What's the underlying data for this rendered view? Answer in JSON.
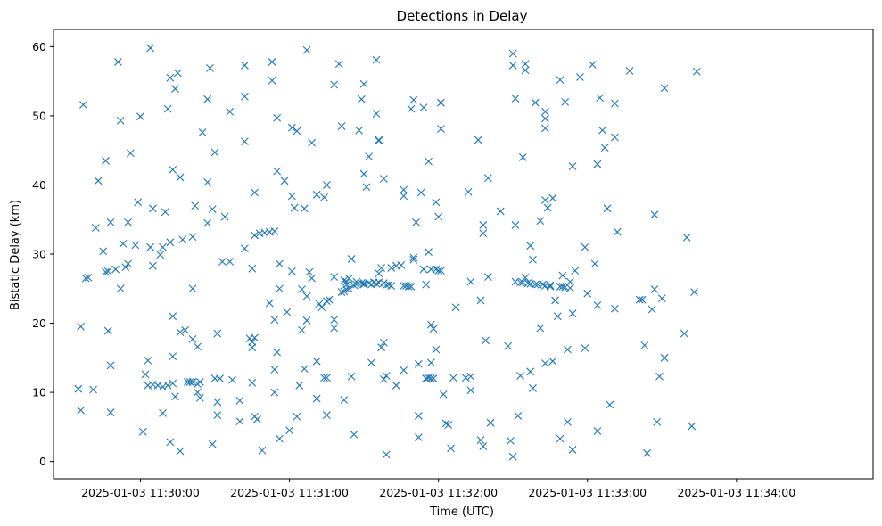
{
  "chart_data": {
    "type": "scatter",
    "title": "Detections in Delay",
    "xlabel": "Time (UTC)",
    "ylabel": "Bistatic Delay (km)",
    "xlim": [
      "2025-01-03 11:29:25",
      "2025-01-03 11:34:55"
    ],
    "ylim": [
      -2.5,
      62.5
    ],
    "grid": false,
    "marker": "x",
    "color": "#1f77b4",
    "x_ticks": [
      {
        "t": "2025-01-03 11:30:00",
        "label": "2025-01-03 11:30:00"
      },
      {
        "t": "2025-01-03 11:31:00",
        "label": "2025-01-03 11:31:00"
      },
      {
        "t": "2025-01-03 11:32:00",
        "label": "2025-01-03 11:32:00"
      },
      {
        "t": "2025-01-03 11:33:00",
        "label": "2025-01-03 11:33:00"
      },
      {
        "t": "2025-01-03 11:34:00",
        "label": "2025-01-03 11:34:00"
      }
    ],
    "y_ticks": [
      0,
      10,
      20,
      30,
      40,
      50,
      60
    ],
    "points": [
      [
        "11:29:35",
        10.5
      ],
      [
        "11:29:36",
        7.4
      ],
      [
        "11:29:36",
        19.5
      ],
      [
        "11:29:37",
        51.6
      ],
      [
        "11:29:38",
        26.5
      ],
      [
        "11:29:39",
        26.6
      ],
      [
        "11:29:41",
        10.4
      ],
      [
        "11:29:42",
        33.8
      ],
      [
        "11:29:43",
        40.6
      ],
      [
        "11:29:45",
        30.4
      ],
      [
        "11:29:46",
        43.5
      ],
      [
        "11:29:46",
        27.4
      ],
      [
        "11:29:47",
        18.9
      ],
      [
        "11:29:47",
        27.5
      ],
      [
        "11:29:48",
        13.9
      ],
      [
        "11:29:48",
        34.6
      ],
      [
        "11:29:48",
        7.1
      ],
      [
        "11:29:50",
        27.8
      ],
      [
        "11:29:51",
        57.8
      ],
      [
        "11:29:52",
        49.3
      ],
      [
        "11:29:52",
        25.0
      ],
      [
        "11:29:53",
        31.5
      ],
      [
        "11:29:54",
        28.1
      ],
      [
        "11:29:55",
        34.6
      ],
      [
        "11:29:55",
        28.6
      ],
      [
        "11:29:56",
        44.6
      ],
      [
        "11:29:58",
        31.3
      ],
      [
        "11:29:59",
        37.5
      ],
      [
        "11:30:00",
        49.9
      ],
      [
        "11:30:01",
        4.3
      ],
      [
        "11:30:02",
        12.6
      ],
      [
        "11:30:03",
        14.6
      ],
      [
        "11:30:03",
        11.0
      ],
      [
        "11:30:04",
        59.8
      ],
      [
        "11:30:04",
        31.0
      ],
      [
        "11:30:05",
        28.3
      ],
      [
        "11:30:05",
        11.1
      ],
      [
        "11:30:05",
        36.6
      ],
      [
        "11:30:07",
        11.0
      ],
      [
        "11:30:08",
        29.9
      ],
      [
        "11:30:09",
        31.0
      ],
      [
        "11:30:09",
        7.0
      ],
      [
        "11:30:09",
        10.8
      ],
      [
        "11:30:10",
        36.1
      ],
      [
        "11:30:11",
        11.0
      ],
      [
        "11:30:11",
        51.0
      ],
      [
        "11:30:12",
        55.5
      ],
      [
        "11:30:12",
        31.7
      ],
      [
        "11:30:12",
        2.8
      ],
      [
        "11:30:13",
        42.2
      ],
      [
        "11:30:13",
        21.0
      ],
      [
        "11:30:13",
        15.2
      ],
      [
        "11:30:13",
        11.3
      ],
      [
        "11:30:14",
        9.4
      ],
      [
        "11:30:14",
        53.9
      ],
      [
        "11:30:15",
        56.2
      ],
      [
        "11:30:16",
        1.5
      ],
      [
        "11:30:16",
        18.7
      ],
      [
        "11:30:16",
        41.1
      ],
      [
        "11:30:17",
        32.1
      ],
      [
        "11:30:18",
        19.0
      ],
      [
        "11:30:19",
        11.5
      ],
      [
        "11:30:20",
        11.5
      ],
      [
        "11:30:21",
        11.5
      ],
      [
        "11:30:21",
        25.0
      ],
      [
        "11:30:21",
        32.5
      ],
      [
        "11:30:21",
        17.7
      ],
      [
        "11:30:22",
        37.0
      ],
      [
        "11:30:23",
        11.2
      ],
      [
        "11:30:23",
        16.6
      ],
      [
        "11:30:23",
        10.0
      ],
      [
        "11:30:24",
        11.5
      ],
      [
        "11:30:24",
        9.2
      ],
      [
        "11:30:25",
        47.6
      ],
      [
        "11:30:27",
        40.4
      ],
      [
        "11:30:27",
        52.4
      ],
      [
        "11:30:27",
        34.5
      ],
      [
        "11:30:28",
        56.9
      ],
      [
        "11:30:29",
        2.5
      ],
      [
        "11:30:29",
        36.5
      ],
      [
        "11:30:30",
        44.7
      ],
      [
        "11:30:30",
        12.0
      ],
      [
        "11:30:31",
        18.5
      ],
      [
        "11:30:31",
        6.7
      ],
      [
        "11:30:31",
        8.6
      ],
      [
        "11:30:32",
        12.0
      ],
      [
        "11:30:33",
        28.9
      ],
      [
        "11:30:34",
        35.4
      ],
      [
        "11:30:36",
        28.9
      ],
      [
        "11:30:36",
        50.6
      ],
      [
        "11:30:37",
        11.8
      ],
      [
        "11:30:40",
        8.8
      ],
      [
        "11:30:40",
        5.8
      ],
      [
        "11:30:42",
        30.8
      ],
      [
        "11:30:42",
        57.3
      ],
      [
        "11:30:42",
        52.8
      ],
      [
        "11:30:42",
        46.3
      ],
      [
        "11:30:44",
        17.8
      ],
      [
        "11:30:45",
        11.4
      ],
      [
        "11:30:45",
        16.5
      ],
      [
        "11:30:45",
        27.9
      ],
      [
        "11:30:45",
        17.3
      ],
      [
        "11:30:46",
        38.9
      ],
      [
        "11:30:46",
        6.5
      ],
      [
        "11:30:46",
        32.7
      ],
      [
        "11:30:46",
        17.9
      ],
      [
        "11:30:47",
        6.1
      ],
      [
        "11:30:48",
        33.0
      ],
      [
        "11:30:49",
        1.6
      ],
      [
        "11:30:50",
        33.1
      ],
      [
        "11:30:52",
        33.2
      ],
      [
        "11:30:52",
        22.9
      ],
      [
        "11:30:53",
        55.1
      ],
      [
        "11:30:53",
        57.8
      ],
      [
        "11:30:54",
        33.3
      ],
      [
        "11:30:54",
        20.5
      ],
      [
        "11:30:54",
        10.0
      ],
      [
        "11:30:54",
        13.3
      ],
      [
        "11:30:55",
        42.0
      ],
      [
        "11:30:55",
        15.8
      ],
      [
        "11:30:55",
        49.7
      ],
      [
        "11:30:56",
        25.0
      ],
      [
        "11:30:56",
        28.6
      ],
      [
        "11:30:56",
        3.3
      ],
      [
        "11:30:58",
        40.6
      ],
      [
        "11:30:59",
        21.6
      ],
      [
        "11:31:00",
        4.5
      ],
      [
        "11:31:01",
        27.5
      ],
      [
        "11:31:01",
        38.4
      ],
      [
        "11:31:01",
        48.3
      ],
      [
        "11:31:02",
        36.7
      ],
      [
        "11:31:03",
        6.5
      ],
      [
        "11:31:03",
        47.8
      ],
      [
        "11:31:04",
        11.0
      ],
      [
        "11:31:05",
        24.9
      ],
      [
        "11:31:05",
        19.0
      ],
      [
        "11:31:06",
        36.6
      ],
      [
        "11:31:06",
        13.4
      ],
      [
        "11:31:07",
        59.5
      ],
      [
        "11:31:07",
        20.4
      ],
      [
        "11:31:07",
        23.9
      ],
      [
        "11:31:08",
        27.4
      ],
      [
        "11:31:09",
        26.5
      ],
      [
        "11:31:09",
        46.1
      ],
      [
        "11:31:11",
        38.6
      ],
      [
        "11:31:11",
        14.5
      ],
      [
        "11:31:11",
        9.1
      ],
      [
        "11:31:12",
        22.8
      ],
      [
        "11:31:13",
        22.3
      ],
      [
        "11:31:14",
        38.2
      ],
      [
        "11:31:14",
        12.1
      ],
      [
        "11:31:15",
        6.7
      ],
      [
        "11:31:15",
        40.0
      ],
      [
        "11:31:15",
        23.2
      ],
      [
        "11:31:15",
        12.1
      ],
      [
        "11:31:16",
        23.4
      ],
      [
        "11:31:18",
        26.7
      ],
      [
        "11:31:18",
        19.3
      ],
      [
        "11:31:18",
        20.5
      ],
      [
        "11:31:18",
        54.5
      ],
      [
        "11:31:20",
        57.5
      ],
      [
        "11:31:21",
        48.5
      ],
      [
        "11:31:21",
        24.5
      ],
      [
        "11:31:22",
        24.6
      ],
      [
        "11:31:22",
        26.2
      ],
      [
        "11:31:22",
        8.9
      ],
      [
        "11:31:23",
        25.6
      ],
      [
        "11:31:23",
        26.0
      ],
      [
        "11:31:23",
        24.9
      ],
      [
        "11:31:24",
        25.0
      ],
      [
        "11:31:24",
        26.5
      ],
      [
        "11:31:25",
        29.3
      ],
      [
        "11:31:25",
        12.3
      ],
      [
        "11:31:26",
        25.5
      ],
      [
        "11:31:26",
        3.9
      ],
      [
        "11:31:27",
        26.0
      ],
      [
        "11:31:27",
        25.6
      ],
      [
        "11:31:28",
        47.9
      ],
      [
        "11:31:29",
        25.8
      ],
      [
        "11:31:29",
        52.4
      ],
      [
        "11:31:30",
        54.6
      ],
      [
        "11:31:30",
        41.6
      ],
      [
        "11:31:30",
        25.8
      ],
      [
        "11:31:30",
        25.6
      ],
      [
        "11:31:31",
        39.7
      ],
      [
        "11:31:32",
        44.1
      ],
      [
        "11:31:32",
        25.8
      ],
      [
        "11:31:33",
        25.6
      ],
      [
        "11:31:33",
        14.3
      ],
      [
        "11:31:34",
        25.9
      ],
      [
        "11:31:35",
        58.1
      ],
      [
        "11:31:35",
        25.7
      ],
      [
        "11:31:35",
        50.3
      ],
      [
        "11:31:36",
        46.5
      ],
      [
        "11:31:36",
        46.4
      ],
      [
        "11:31:36",
        27.2
      ],
      [
        "11:31:36",
        25.9
      ],
      [
        "11:31:37",
        28.0
      ],
      [
        "11:31:37",
        16.5
      ],
      [
        "11:31:38",
        25.8
      ],
      [
        "11:31:38",
        40.9
      ],
      [
        "11:31:38",
        17.2
      ],
      [
        "11:31:38",
        11.9
      ],
      [
        "11:31:39",
        1.0
      ],
      [
        "11:31:39",
        25.5
      ],
      [
        "11:31:39",
        12.4
      ],
      [
        "11:31:40",
        25.6
      ],
      [
        "11:31:41",
        25.4
      ],
      [
        "11:31:41",
        28.0
      ],
      [
        "11:31:43",
        28.3
      ],
      [
        "11:31:43",
        11.0
      ],
      [
        "11:31:45",
        28.4
      ],
      [
        "11:31:46",
        13.2
      ],
      [
        "11:31:46",
        39.3
      ],
      [
        "11:31:46",
        38.4
      ],
      [
        "11:31:46",
        25.4
      ],
      [
        "11:31:47",
        25.4
      ],
      [
        "11:31:48",
        25.3
      ],
      [
        "11:31:49",
        25.3
      ],
      [
        "11:31:49",
        51.0
      ],
      [
        "11:31:50",
        29.2
      ],
      [
        "11:31:50",
        52.3
      ],
      [
        "11:31:50",
        29.5
      ],
      [
        "11:31:51",
        34.6
      ],
      [
        "11:31:52",
        6.6
      ],
      [
        "11:31:52",
        14.1
      ],
      [
        "11:31:52",
        3.5
      ],
      [
        "11:31:53",
        38.9
      ],
      [
        "11:31:54",
        27.8
      ],
      [
        "11:31:54",
        51.2
      ],
      [
        "11:31:55",
        12.0
      ],
      [
        "11:31:55",
        25.6
      ],
      [
        "11:31:55",
        12.0
      ],
      [
        "11:31:56",
        12.1
      ],
      [
        "11:31:56",
        43.4
      ],
      [
        "11:31:56",
        30.3
      ],
      [
        "11:31:57",
        27.8
      ],
      [
        "11:31:57",
        19.8
      ],
      [
        "11:31:57",
        12.0
      ],
      [
        "11:31:57",
        14.3
      ],
      [
        "11:31:58",
        12.0
      ],
      [
        "11:31:58",
        19.2
      ],
      [
        "11:31:59",
        27.8
      ],
      [
        "11:31:59",
        37.5
      ],
      [
        "11:31:59",
        16.2
      ],
      [
        "11:32:00",
        35.4
      ],
      [
        "11:32:00",
        27.6
      ],
      [
        "11:32:01",
        48.1
      ],
      [
        "11:32:01",
        51.9
      ],
      [
        "11:32:01",
        27.6
      ],
      [
        "11:32:02",
        9.7
      ],
      [
        "11:32:03",
        5.5
      ],
      [
        "11:32:04",
        5.3
      ],
      [
        "11:32:05",
        1.9
      ],
      [
        "11:32:06",
        12.1
      ],
      [
        "11:32:07",
        22.3
      ],
      [
        "11:32:11",
        12.1
      ],
      [
        "11:32:12",
        39.0
      ],
      [
        "11:32:13",
        10.3
      ],
      [
        "11:32:13",
        12.3
      ],
      [
        "11:32:13",
        26.0
      ],
      [
        "11:32:16",
        46.5
      ],
      [
        "11:32:17",
        23.3
      ],
      [
        "11:32:17",
        3.1
      ],
      [
        "11:32:18",
        34.2
      ],
      [
        "11:32:18",
        2.2
      ],
      [
        "11:32:18",
        33.0
      ],
      [
        "11:32:19",
        17.5
      ],
      [
        "11:32:20",
        26.7
      ],
      [
        "11:32:20",
        41.0
      ],
      [
        "11:32:21",
        5.6
      ],
      [
        "11:32:25",
        36.2
      ],
      [
        "11:32:28",
        16.7
      ],
      [
        "11:32:29",
        3.0
      ],
      [
        "11:32:30",
        59.0
      ],
      [
        "11:32:30",
        57.3
      ],
      [
        "11:32:30",
        0.7
      ],
      [
        "11:32:31",
        52.5
      ],
      [
        "11:32:31",
        34.2
      ],
      [
        "11:32:31",
        26.0
      ],
      [
        "11:32:32",
        6.6
      ],
      [
        "11:32:33",
        12.4
      ],
      [
        "11:32:33",
        25.9
      ],
      [
        "11:32:34",
        44.0
      ],
      [
        "11:32:34",
        25.9
      ],
      [
        "11:32:35",
        56.6
      ],
      [
        "11:32:35",
        26.6
      ],
      [
        "11:32:35",
        57.5
      ],
      [
        "11:32:36",
        25.8
      ],
      [
        "11:32:37",
        13.0
      ],
      [
        "11:32:37",
        31.2
      ],
      [
        "11:32:37",
        25.7
      ],
      [
        "11:32:38",
        10.6
      ],
      [
        "11:32:38",
        29.2
      ],
      [
        "11:32:39",
        51.9
      ],
      [
        "11:32:39",
        25.6
      ],
      [
        "11:32:40",
        25.6
      ],
      [
        "11:32:41",
        34.8
      ],
      [
        "11:32:41",
        19.3
      ],
      [
        "11:32:42",
        25.6
      ],
      [
        "11:32:43",
        50.6
      ],
      [
        "11:32:43",
        14.2
      ],
      [
        "11:32:43",
        25.4
      ],
      [
        "11:32:43",
        48.2
      ],
      [
        "11:32:43",
        37.8
      ],
      [
        "11:32:43",
        49.6
      ],
      [
        "11:32:44",
        36.7
      ],
      [
        "11:32:45",
        25.5
      ],
      [
        "11:32:45",
        25.3
      ],
      [
        "11:32:46",
        38.1
      ],
      [
        "11:32:46",
        14.5
      ],
      [
        "11:32:47",
        23.3
      ],
      [
        "11:32:48",
        21.0
      ],
      [
        "11:32:49",
        55.2
      ],
      [
        "11:32:49",
        25.3
      ],
      [
        "11:32:49",
        3.3
      ],
      [
        "11:32:50",
        26.9
      ],
      [
        "11:32:50",
        25.3
      ],
      [
        "11:32:51",
        52.0
      ],
      [
        "11:32:51",
        25.2
      ],
      [
        "11:32:52",
        16.2
      ],
      [
        "11:32:52",
        5.7
      ],
      [
        "11:32:53",
        26.0
      ],
      [
        "11:32:53",
        25.1
      ],
      [
        "11:32:54",
        21.4
      ],
      [
        "11:32:54",
        42.7
      ],
      [
        "11:32:54",
        1.7
      ],
      [
        "11:32:55",
        27.6
      ],
      [
        "11:32:57",
        55.6
      ],
      [
        "11:32:59",
        16.4
      ],
      [
        "11:32:59",
        31.0
      ],
      [
        "11:33:00",
        24.3
      ],
      [
        "11:33:02",
        57.4
      ],
      [
        "11:33:03",
        28.6
      ],
      [
        "11:33:04",
        43.0
      ],
      [
        "11:33:04",
        4.4
      ],
      [
        "11:33:04",
        22.6
      ],
      [
        "11:33:05",
        52.6
      ],
      [
        "11:33:06",
        47.9
      ],
      [
        "11:33:07",
        45.4
      ],
      [
        "11:33:08",
        36.6
      ],
      [
        "11:33:09",
        8.2
      ],
      [
        "11:33:11",
        51.8
      ],
      [
        "11:33:11",
        46.9
      ],
      [
        "11:33:11",
        22.1
      ],
      [
        "11:33:12",
        33.2
      ],
      [
        "11:33:17",
        56.5
      ],
      [
        "11:33:21",
        23.4
      ],
      [
        "11:33:22",
        23.4
      ],
      [
        "11:33:23",
        16.8
      ],
      [
        "11:33:24",
        1.2
      ],
      [
        "11:33:26",
        22.0
      ],
      [
        "11:33:27",
        24.9
      ],
      [
        "11:33:27",
        35.7
      ],
      [
        "11:33:28",
        5.7
      ],
      [
        "11:33:29",
        12.3
      ],
      [
        "11:33:30",
        23.6
      ],
      [
        "11:33:31",
        54.0
      ],
      [
        "11:33:31",
        15.0
      ],
      [
        "11:33:39",
        18.5
      ],
      [
        "11:33:40",
        32.4
      ],
      [
        "11:33:42",
        5.1
      ],
      [
        "11:33:43",
        24.5
      ],
      [
        "11:33:44",
        56.4
      ]
    ]
  }
}
